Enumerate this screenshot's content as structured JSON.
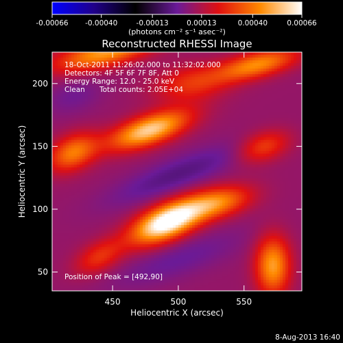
{
  "chart_data": {
    "type": "heatmap",
    "title": "Reconstructed RHESSI Image",
    "xlabel": "Heliocentric X (arcsec)",
    "ylabel": "Heliocentric Y (arcsec)",
    "xlim": [
      404,
      594
    ],
    "ylim": [
      35,
      225
    ],
    "x_ticks": [
      450,
      500,
      550
    ],
    "y_ticks": [
      50,
      100,
      150,
      200
    ],
    "colorbar": {
      "range": [
        -0.00066,
        0.00066
      ],
      "tick_values": [
        -0.00066,
        -0.0004,
        -0.00013,
        0.00013,
        0.0004,
        0.00066
      ],
      "tick_labels": [
        "-0.00066",
        "-0.00040",
        "-0.00013",
        "0.00013",
        "0.00040",
        "0.00066"
      ],
      "unit_label": "(photons cm⁻² s⁻¹ asec⁻²)",
      "colors": [
        "#0000ff",
        "#20008a",
        "#000000",
        "#6a1a98",
        "#e01010",
        "#ff8a00",
        "#ffffff"
      ]
    },
    "annotations": [
      "18-Oct-2011 11:26:02.000 to 11:32:02.000",
      "Detectors: 4F 5F 6F 7F 8F, Att 0",
      "Energy Range: 12.0 - 25.0 keV",
      "Clean",
      "Total counts: 2.05E+04"
    ],
    "peak_label": "Position of Peak = [492,90]",
    "peak_position": [
      492,
      90
    ],
    "sources": [
      {
        "x": 492,
        "y": 90,
        "sx": 20,
        "sy": 9,
        "angle": 25,
        "amp": 1.0
      },
      {
        "x": 530,
        "y": 105,
        "sx": 18,
        "sy": 8,
        "angle": 15,
        "amp": 0.5
      },
      {
        "x": 478,
        "y": 163,
        "sx": 22,
        "sy": 8,
        "angle": 20,
        "amp": 0.75
      },
      {
        "x": 420,
        "y": 145,
        "sx": 14,
        "sy": 9,
        "angle": 30,
        "amp": 0.5
      },
      {
        "x": 445,
        "y": 225,
        "sx": 28,
        "sy": 8,
        "angle": 15,
        "amp": 0.6
      },
      {
        "x": 572,
        "y": 55,
        "sx": 9,
        "sy": 16,
        "angle": 0,
        "amp": 0.6
      },
      {
        "x": 560,
        "y": 215,
        "sx": 22,
        "sy": 7,
        "angle": 15,
        "amp": 0.55
      },
      {
        "x": 565,
        "y": 150,
        "sx": 14,
        "sy": 8,
        "angle": 20,
        "amp": 0.35
      },
      {
        "x": 440,
        "y": 62,
        "sx": 14,
        "sy": 8,
        "angle": 30,
        "amp": 0.3
      },
      {
        "x": 510,
        "y": 200,
        "sx": 20,
        "sy": 10,
        "angle": 10,
        "amp": 0.3
      }
    ],
    "negatives": [
      {
        "x": 500,
        "y": 128,
        "sx": 40,
        "sy": 9,
        "angle": 22,
        "amp": 0.18
      },
      {
        "x": 500,
        "y": 60,
        "sx": 38,
        "sy": 10,
        "angle": 20,
        "amp": 0.12
      },
      {
        "x": 420,
        "y": 190,
        "sx": 16,
        "sy": 10,
        "angle": 20,
        "amp": 0.1
      }
    ]
  },
  "footer": {
    "date": "8-Aug-2013 16:40"
  }
}
